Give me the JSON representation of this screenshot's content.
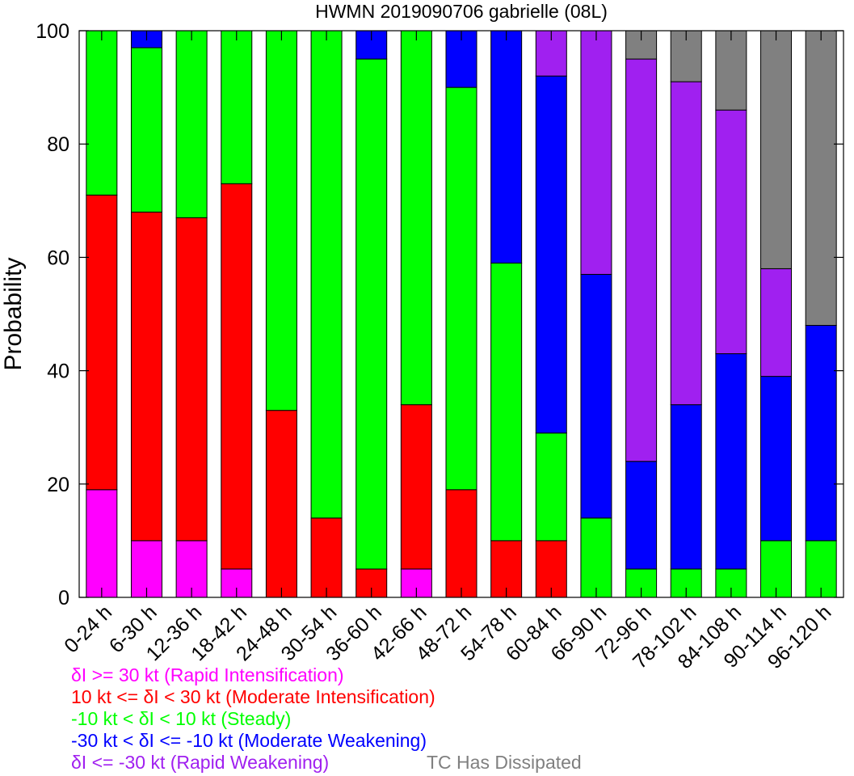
{
  "chart_data": {
    "type": "bar",
    "stacked": true,
    "title": "HWMN 2019090706 gabrielle (08L)",
    "ylabel": "Probability",
    "xlabel": "",
    "ylim": [
      0,
      100
    ],
    "yticks": [
      0,
      20,
      40,
      60,
      80,
      100
    ],
    "grid": false,
    "legend_placement": "bottom",
    "categories": [
      "0-24 h",
      "6-30 h",
      "12-36 h",
      "18-42 h",
      "24-48 h",
      "30-54 h",
      "36-60 h",
      "42-66 h",
      "48-72 h",
      "54-78 h",
      "60-84 h",
      "66-90 h",
      "72-96 h",
      "78-102 h",
      "84-108 h",
      "90-114 h",
      "96-120 h"
    ],
    "series": [
      {
        "name": "δI >= 30 kt (Rapid Intensification)",
        "color": "#ff00ff",
        "values": [
          19,
          10,
          10,
          5,
          0,
          0,
          0,
          5,
          0,
          0,
          0,
          0,
          0,
          0,
          0,
          0,
          0
        ]
      },
      {
        "name": "10 kt <= δI < 30 kt (Moderate Intensification)",
        "color": "#ff0000",
        "values": [
          52,
          58,
          57,
          68,
          33,
          14,
          5,
          29,
          19,
          10,
          10,
          0,
          0,
          0,
          0,
          0,
          0
        ]
      },
      {
        "name": "-10 kt < δI < 10 kt (Steady)",
        "color": "#00ff00",
        "values": [
          29,
          29,
          33,
          27,
          67,
          86,
          90,
          66,
          71,
          49,
          19,
          14,
          5,
          5,
          5,
          10,
          10
        ]
      },
      {
        "name": "-30 kt < δI <= -10 kt (Moderate Weakening)",
        "color": "#0000ff",
        "values": [
          0,
          3,
          0,
          0,
          0,
          0,
          5,
          0,
          10,
          41,
          63,
          43,
          19,
          29,
          38,
          29,
          38
        ]
      },
      {
        "name": "δI <= -30 kt (Rapid Weakening)",
        "color": "#a020f0",
        "values": [
          0,
          0,
          0,
          0,
          0,
          0,
          0,
          0,
          0,
          0,
          8,
          43,
          71,
          57,
          43,
          19,
          0
        ]
      },
      {
        "name": "TC Has Dissipated",
        "color": "#808080",
        "values": [
          0,
          0,
          0,
          0,
          0,
          0,
          0,
          0,
          0,
          0,
          0,
          0,
          5,
          9,
          14,
          42,
          52
        ]
      }
    ]
  }
}
